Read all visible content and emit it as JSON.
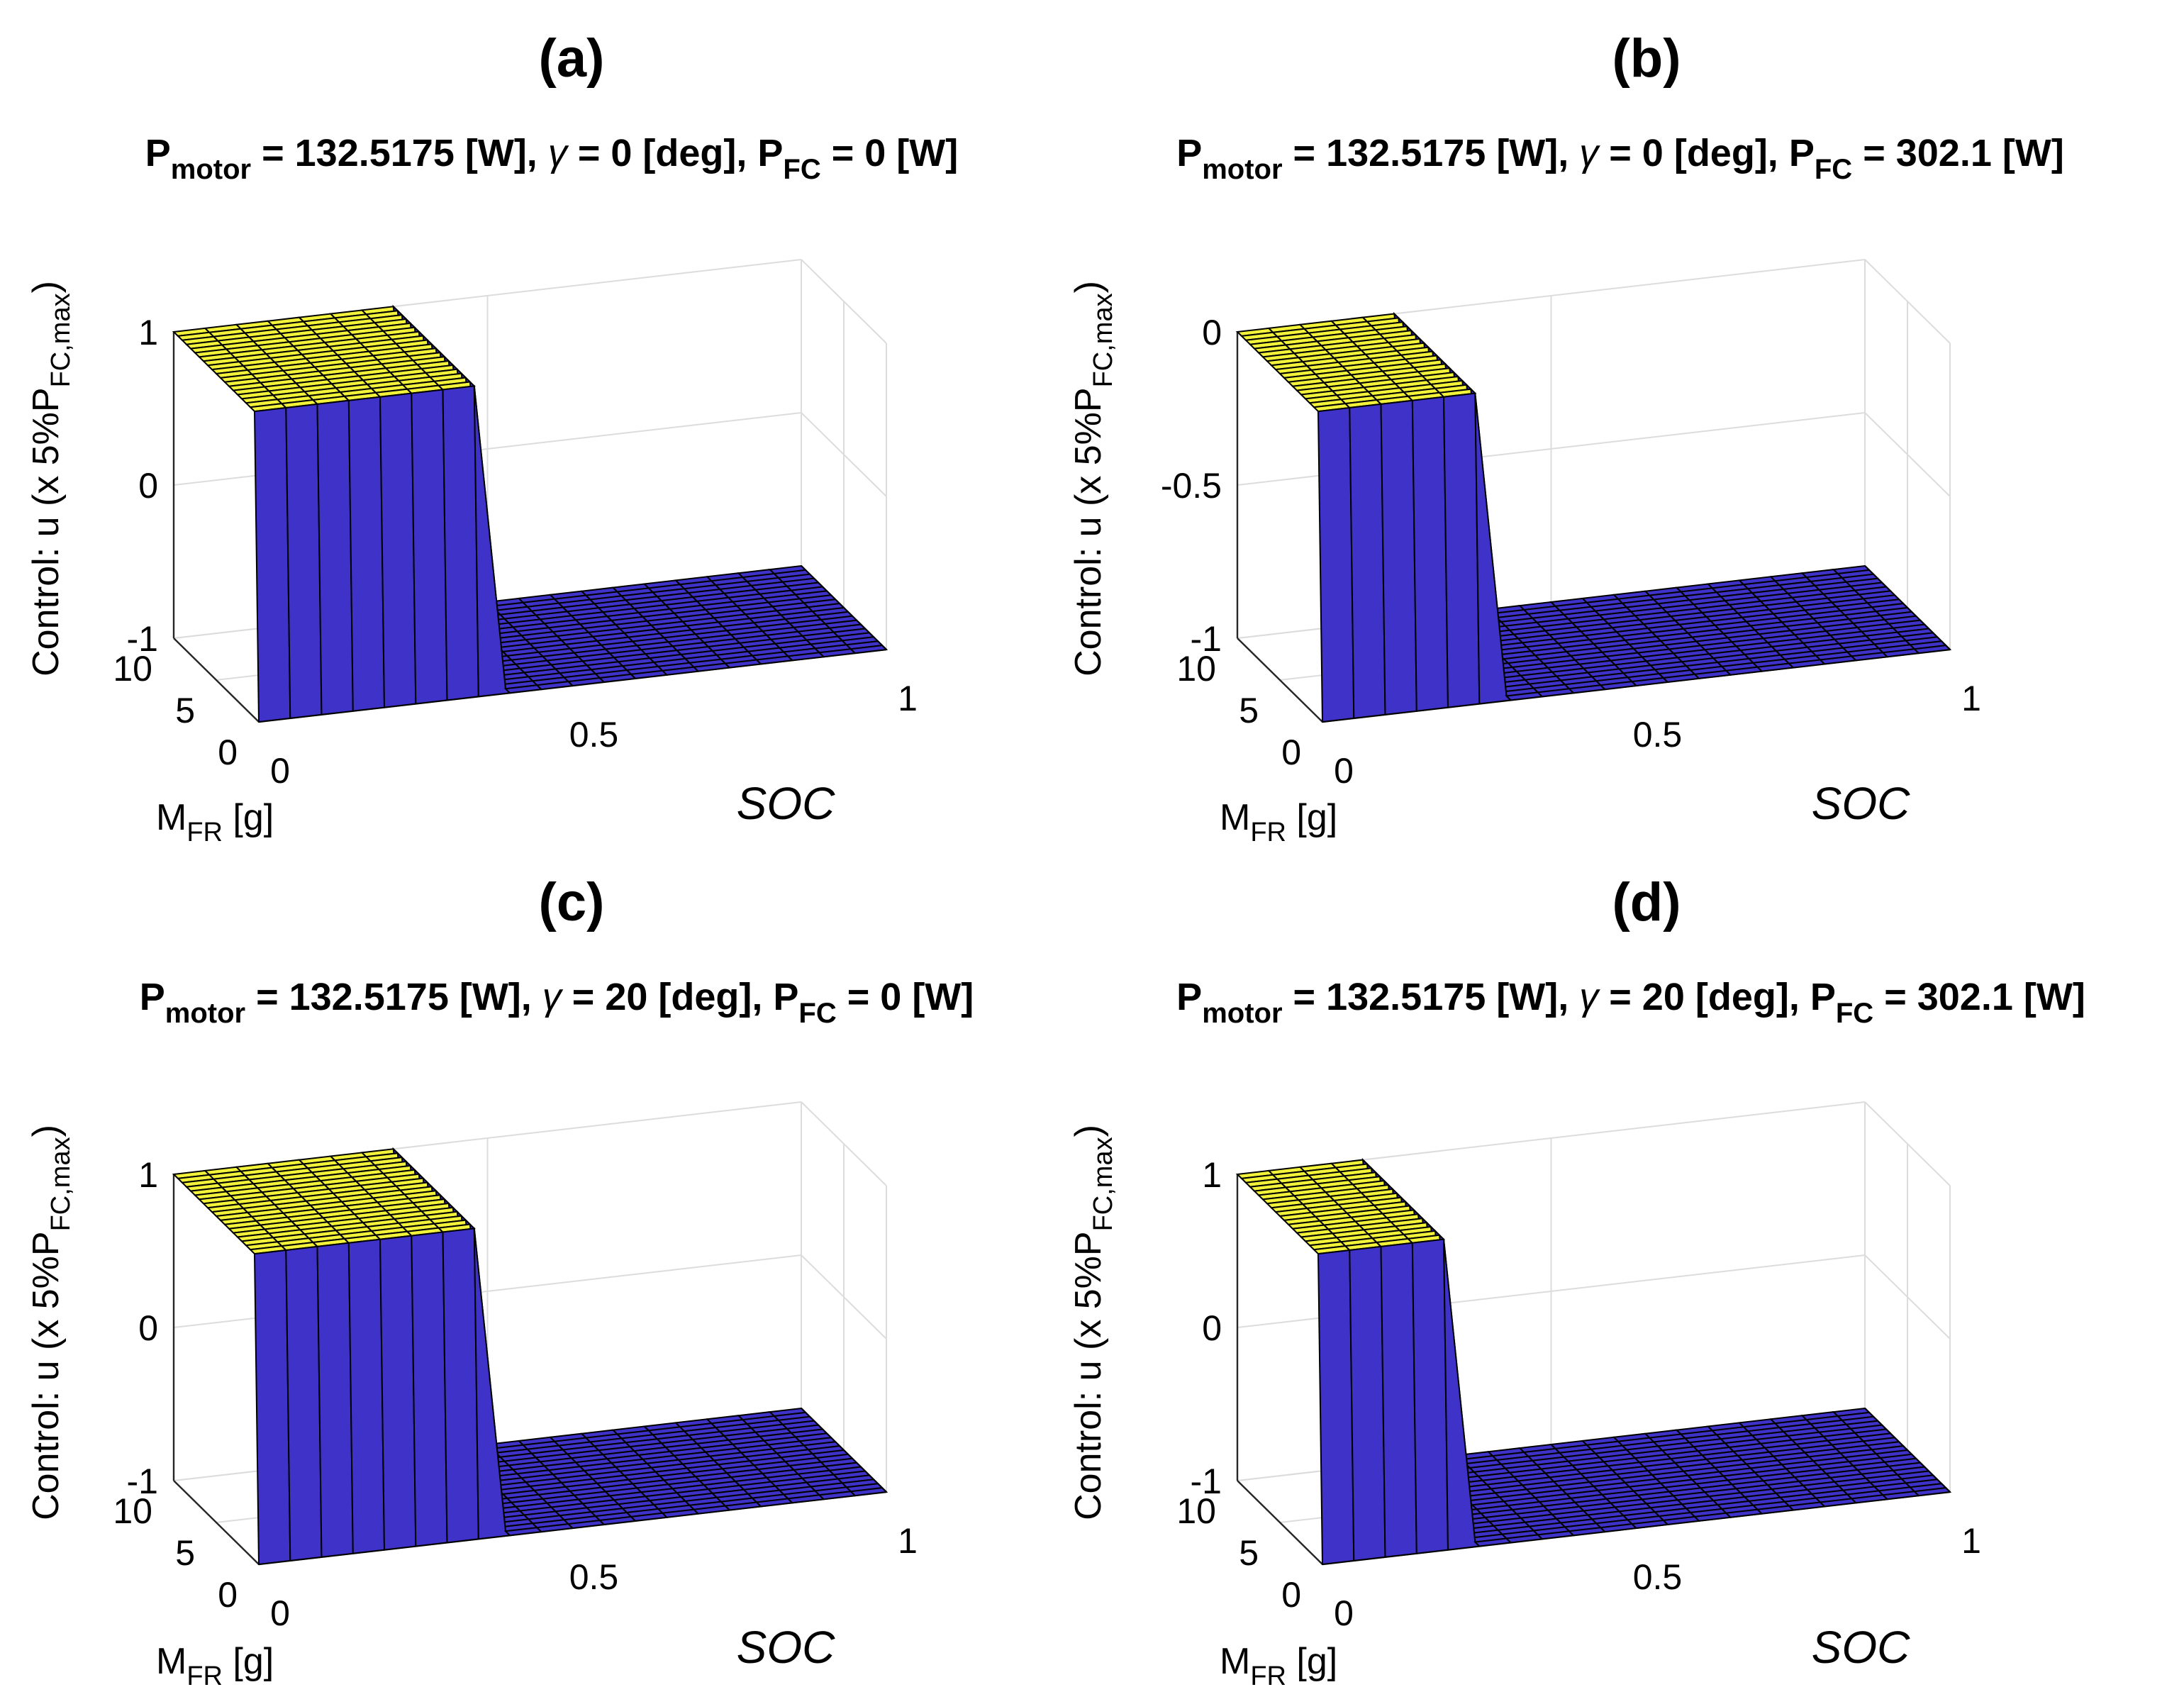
{
  "figure": {
    "colors": {
      "surface_low": "#3f32c8",
      "surface_high": "#f2f23a",
      "edge": "#000000",
      "grid": "#dcdcdc"
    }
  },
  "chart_data": [
    {
      "id": "a",
      "type": "surface3d",
      "panel_label": "(a)",
      "title": {
        "p_motor_sym": "P",
        "p_motor_sub": "motor",
        "p_motor_val": " = 132.5175 [W], ",
        "gamma_sym": "γ",
        "gamma_val": " = 0 [deg], ",
        "p_fc_sym": "P",
        "p_fc_sub": "FC",
        "p_fc_val": " = 0 [W]"
      },
      "xlabel": "SOC",
      "ylabel_main": "M",
      "ylabel_sub": "FR",
      "ylabel_unit": " [g]",
      "zlabel_main": "Control: u (x 5%P",
      "zlabel_sub": "FC,max",
      "zlabel_end": ")",
      "xlim": [
        0,
        1
      ],
      "ylim": [
        0,
        10
      ],
      "zlim": [
        -1,
        1
      ],
      "xticks": [
        0,
        0.5,
        1
      ],
      "yticks": [
        0,
        5,
        10
      ],
      "zticks": [
        -1,
        0,
        1
      ],
      "xtick_labels": [
        "0",
        "0.5",
        "1"
      ],
      "ytick_labels": [
        "0",
        "5",
        "10"
      ],
      "ztick_labels": [
        "-1",
        "0",
        "1"
      ],
      "surface": {
        "x_step": 0.05,
        "y_step": 0.5,
        "low_value": -1,
        "high_value": 1,
        "high_soc_max": [
          0.35,
          0.35
        ]
      }
    },
    {
      "id": "b",
      "type": "surface3d",
      "panel_label": "(b)",
      "title": {
        "p_motor_sym": "P",
        "p_motor_sub": "motor",
        "p_motor_val": " = 132.5175 [W], ",
        "gamma_sym": "γ",
        "gamma_val": " = 0 [deg], ",
        "p_fc_sym": "P",
        "p_fc_sub": "FC",
        "p_fc_val": " = 302.1 [W]"
      },
      "xlabel": "SOC",
      "ylabel_main": "M",
      "ylabel_sub": "FR",
      "ylabel_unit": " [g]",
      "zlabel_main": "Control: u (x 5%P",
      "zlabel_sub": "FC,max",
      "zlabel_end": ")",
      "xlim": [
        0,
        1
      ],
      "ylim": [
        0,
        10
      ],
      "zlim": [
        -1,
        0
      ],
      "xticks": [
        0,
        0.5,
        1
      ],
      "yticks": [
        0,
        5,
        10
      ],
      "zticks": [
        -1,
        -0.5,
        0
      ],
      "xtick_labels": [
        "0",
        "0.5",
        "1"
      ],
      "ytick_labels": [
        "0",
        "5",
        "10"
      ],
      "ztick_labels": [
        "-1",
        "-0.5",
        "0"
      ],
      "surface": {
        "x_step": 0.05,
        "y_step": 0.5,
        "low_value": -1,
        "high_value": 0,
        "high_soc_max": [
          0.25,
          0.25
        ]
      }
    },
    {
      "id": "c",
      "type": "surface3d",
      "panel_label": "(c)",
      "title": {
        "p_motor_sym": "P",
        "p_motor_sub": "motor",
        "p_motor_val": " = 132.5175 [W], ",
        "gamma_sym": "γ",
        "gamma_val": " = 20 [deg], ",
        "p_fc_sym": "P",
        "p_fc_sub": "FC",
        "p_fc_val": " = 0 [W]"
      },
      "xlabel": "SOC",
      "ylabel_main": "M",
      "ylabel_sub": "FR",
      "ylabel_unit": " [g]",
      "zlabel_main": "Control: u (x 5%P",
      "zlabel_sub": "FC,max",
      "zlabel_end": ")",
      "xlim": [
        0,
        1
      ],
      "ylim": [
        0,
        10
      ],
      "zlim": [
        -1,
        1
      ],
      "xticks": [
        0,
        0.5,
        1
      ],
      "yticks": [
        0,
        5,
        10
      ],
      "zticks": [
        -1,
        0,
        1
      ],
      "xtick_labels": [
        "0",
        "0.5",
        "1"
      ],
      "ytick_labels": [
        "0",
        "5",
        "10"
      ],
      "ztick_labels": [
        "-1",
        "0",
        "1"
      ],
      "surface": {
        "x_step": 0.05,
        "y_step": 0.5,
        "low_value": -1,
        "high_value": 1,
        "high_soc_max": [
          0.35,
          0.35
        ]
      }
    },
    {
      "id": "d",
      "type": "surface3d",
      "panel_label": "(d)",
      "title": {
        "p_motor_sym": "P",
        "p_motor_sub": "motor",
        "p_motor_val": " = 132.5175 [W], ",
        "gamma_sym": "γ",
        "gamma_val": " = 20 [deg], ",
        "p_fc_sym": "P",
        "p_fc_sub": "FC",
        "p_fc_val": " = 302.1 [W]"
      },
      "xlabel": "SOC",
      "ylabel_main": "M",
      "ylabel_sub": "FR",
      "ylabel_unit": " [g]",
      "zlabel_main": "Control: u (x 5%P",
      "zlabel_sub": "FC,max",
      "zlabel_end": ")",
      "xlim": [
        0,
        1
      ],
      "ylim": [
        0,
        10
      ],
      "zlim": [
        -1,
        1
      ],
      "xticks": [
        0,
        0.5,
        1
      ],
      "yticks": [
        0,
        5,
        10
      ],
      "zticks": [
        -1,
        0,
        1
      ],
      "xtick_labels": [
        "0",
        "0.5",
        "1"
      ],
      "ytick_labels": [
        "0",
        "5",
        "10"
      ],
      "ztick_labels": [
        "-1",
        "0",
        "1"
      ],
      "surface": {
        "x_step": 0.05,
        "y_step": 0.5,
        "low_value": -1,
        "high_value": 1,
        "high_soc_max": [
          0.25,
          0.2
        ]
      }
    }
  ]
}
